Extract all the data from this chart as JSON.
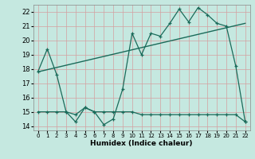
{
  "xlabel": "Humidex (Indice chaleur)",
  "xlim": [
    -0.5,
    22.5
  ],
  "ylim": [
    13.7,
    22.5
  ],
  "yticks": [
    14,
    15,
    16,
    17,
    18,
    19,
    20,
    21,
    22
  ],
  "xticks": [
    0,
    1,
    2,
    3,
    4,
    5,
    6,
    7,
    8,
    9,
    10,
    11,
    12,
    13,
    14,
    15,
    16,
    17,
    18,
    19,
    20,
    21,
    22
  ],
  "bg_color": "#c5e8e0",
  "grid_color": "#b0d8cc",
  "line_color": "#1a6b5a",
  "line1_x": [
    0,
    1,
    2,
    3,
    4,
    5,
    6,
    7,
    8,
    9,
    10,
    11,
    12,
    13,
    14,
    15,
    16,
    17,
    18,
    19,
    20,
    21,
    22
  ],
  "line1_y": [
    17.8,
    19.4,
    17.6,
    15.0,
    14.3,
    15.3,
    15.0,
    14.1,
    14.5,
    16.6,
    20.5,
    19.0,
    20.5,
    20.3,
    21.2,
    22.2,
    21.3,
    22.3,
    21.8,
    21.2,
    21.0,
    18.2,
    14.3
  ],
  "line2_x": [
    0,
    1,
    2,
    3,
    4,
    5,
    6,
    7,
    8,
    9,
    10,
    11,
    12,
    13,
    14,
    15,
    16,
    17,
    18,
    19,
    20,
    21,
    22
  ],
  "line2_y": [
    15.0,
    15.0,
    15.0,
    15.0,
    14.8,
    15.3,
    15.0,
    15.0,
    15.0,
    15.0,
    15.0,
    14.8,
    14.8,
    14.8,
    14.8,
    14.8,
    14.8,
    14.8,
    14.8,
    14.8,
    14.8,
    14.8,
    14.3
  ],
  "trend_x": [
    0,
    22
  ],
  "trend_y": [
    17.8,
    21.2
  ]
}
